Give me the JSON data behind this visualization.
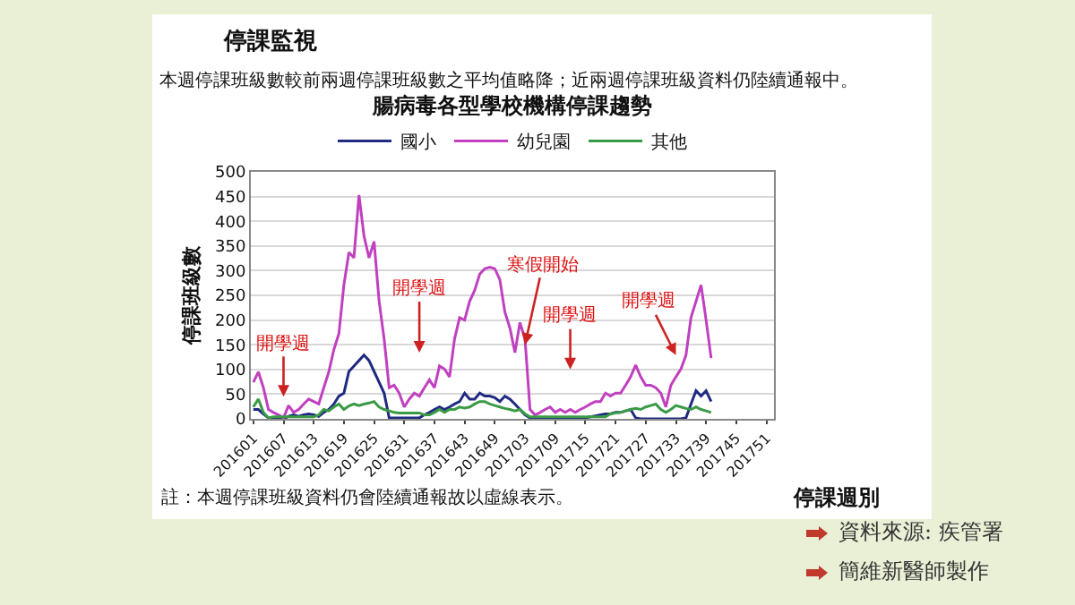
{
  "chart_data": {
    "type": "line",
    "title": "腸病毒各型學校機構停課趨勢",
    "ylabel": "停課班級數",
    "xlabel": "停課週別",
    "annotations": [
      "停課監視",
      "本週停課班級數較前兩週停課班級數之平均值略降；近兩週停課班級資料仍陸續通報中。",
      {
        "text": "開學週",
        "x": "201607",
        "y": 45
      },
      "開學週",
      {
        "text": "寒假開始",
        "x": "201703",
        "y": 150
      },
      "開學週",
      {
        "text": "開學週",
        "x": "201733",
        "y": 129
      },
      "註：本週停課班級資料仍會陸續通報故以虛線表示。",
      "資料來源: 疾管署",
      "簡維新醫師製作"
    ],
    "categories": [
      "201601",
      null,
      null,
      null,
      null,
      null,
      "201607",
      null,
      null,
      null,
      null,
      null,
      "201613",
      null,
      null,
      null,
      null,
      null,
      "201619",
      null,
      null,
      null,
      null,
      null,
      "201625",
      null,
      null,
      null,
      null,
      null,
      "201631",
      null,
      null,
      null,
      null,
      null,
      "201637",
      null,
      null,
      null,
      null,
      null,
      "201643",
      null,
      null,
      null,
      null,
      null,
      "201649",
      null,
      null,
      null,
      null,
      null,
      "201703",
      null,
      null,
      null,
      null,
      null,
      "201709",
      null,
      null,
      null,
      null,
      null,
      "201715",
      null,
      null,
      null,
      null,
      null,
      "201721",
      null,
      null,
      null,
      null,
      null,
      "201727",
      null,
      null,
      null,
      null,
      null,
      "201733",
      null,
      null,
      null,
      null,
      null,
      "201739",
      null,
      null,
      null,
      null,
      null,
      "201745",
      null,
      null,
      null,
      null,
      null,
      "201751",
      null
    ],
    "series": [
      {
        "name": "國小",
        "color": "#1f2a80",
        "values": [
          19,
          19,
          10,
          2,
          0,
          0,
          0,
          5,
          8,
          5,
          8,
          10,
          8,
          5,
          13,
          19,
          30,
          46,
          52,
          96,
          107,
          118,
          129,
          118,
          96,
          74,
          52,
          2,
          2,
          2,
          2,
          2,
          2,
          2,
          8,
          13,
          19,
          24,
          19,
          24,
          30,
          35,
          52,
          40,
          40,
          52,
          46,
          46,
          43,
          35,
          46,
          40,
          30,
          19,
          8,
          2,
          2,
          2,
          2,
          2,
          2,
          2,
          2,
          2,
          2,
          2,
          2,
          4,
          6,
          8,
          10,
          10,
          13,
          13,
          16,
          19,
          2,
          0,
          0,
          0,
          0,
          0,
          0,
          0,
          0,
          0,
          2,
          30,
          57,
          46,
          57,
          35,
          null,
          null,
          null,
          null,
          null,
          null,
          null,
          null,
          null,
          null,
          null,
          null
        ]
      },
      {
        "name": "幼兒園",
        "color": "#c040c0",
        "values": [
          74,
          95,
          63,
          19,
          13,
          8,
          2,
          27,
          13,
          19,
          30,
          40,
          35,
          30,
          63,
          95,
          140,
          172,
          271,
          337,
          326,
          453,
          370,
          326,
          359,
          238,
          162,
          63,
          68,
          52,
          24,
          40,
          52,
          46,
          63,
          79,
          63,
          107,
          101,
          85,
          162,
          205,
          200,
          238,
          260,
          293,
          304,
          307,
          304,
          282,
          216,
          184,
          134,
          195,
          162,
          19,
          8,
          13,
          19,
          24,
          13,
          19,
          13,
          19,
          13,
          19,
          24,
          30,
          35,
          35,
          52,
          46,
          52,
          52,
          68,
          85,
          109,
          85,
          68,
          68,
          63,
          52,
          24,
          68,
          85,
          101,
          129,
          205,
          238,
          271,
          200,
          123,
          null,
          null,
          null,
          null,
          null,
          null,
          null,
          null,
          null,
          null,
          null,
          null
        ]
      },
      {
        "name": "其他",
        "color": "#3a9a45",
        "values": [
          24,
          40,
          13,
          2,
          4,
          4,
          4,
          4,
          4,
          4,
          4,
          4,
          4,
          8,
          19,
          16,
          24,
          30,
          19,
          26,
          30,
          27,
          30,
          32,
          35,
          24,
          19,
          16,
          13,
          12,
          12,
          12,
          12,
          12,
          8,
          8,
          13,
          19,
          13,
          19,
          19,
          24,
          22,
          24,
          30,
          35,
          35,
          30,
          27,
          24,
          21,
          19,
          16,
          19,
          10,
          4,
          4,
          4,
          4,
          4,
          4,
          4,
          4,
          4,
          4,
          4,
          4,
          4,
          4,
          4,
          4,
          10,
          12,
          13,
          16,
          19,
          21,
          19,
          24,
          27,
          30,
          19,
          13,
          19,
          27,
          24,
          21,
          19,
          24,
          19,
          16,
          13,
          null,
          null,
          null,
          null,
          null,
          null,
          null,
          null,
          null,
          null,
          null,
          null
        ]
      }
    ],
    "ylim": [
      0,
      500
    ],
    "yticks": [
      0,
      50,
      100,
      150,
      200,
      250,
      300,
      350,
      400,
      450,
      500
    ],
    "grid": "y",
    "legend": "top",
    "marker": "none",
    "line_style": "solid"
  }
}
